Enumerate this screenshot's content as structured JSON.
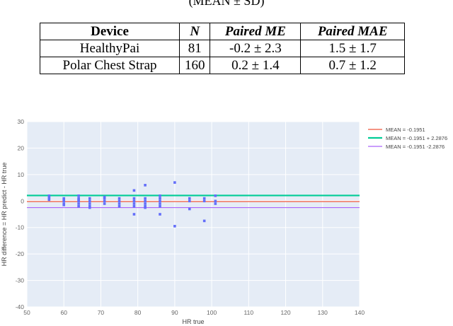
{
  "caption_fragment": "(MEAN ± SD)",
  "table": {
    "headers": [
      "Device",
      "N",
      "Paired ME",
      "Paired MAE"
    ],
    "rows": [
      [
        "HealthyPai",
        "81",
        "-0.2 ± 2.3",
        "1.5 ± 1.7"
      ],
      [
        "Polar Chest Strap",
        "160",
        "0.2 ± 1.4",
        "0.7 ± 1.2"
      ]
    ]
  },
  "chart_data": {
    "type": "scatter",
    "xlabel": "HR true",
    "ylabel": "HR difference = HR predict - HR true",
    "xlim": [
      50,
      140
    ],
    "ylim": [
      -40,
      30
    ],
    "xticks": [
      50,
      60,
      70,
      80,
      90,
      100,
      110,
      120,
      130,
      140
    ],
    "yticks": [
      30,
      20,
      10,
      0,
      -10,
      -20,
      -30,
      -40
    ],
    "grid": true,
    "legend_position": "right",
    "background": "#e5ecf6",
    "marker_color": "#636efa",
    "lines": [
      {
        "name": "MEAN = -0.1951",
        "y": -0.1951,
        "color": "#ef553b"
      },
      {
        "name": "MEAN = -0.1951 + 2.2876",
        "y": 2.0925,
        "color": "#00cc96"
      },
      {
        "name": "MEAN = -0.1951 -2.2876",
        "y": -2.4827,
        "color": "#ab63fa"
      }
    ],
    "points": [
      [
        56,
        2
      ],
      [
        56,
        1
      ],
      [
        56,
        0.5
      ],
      [
        56,
        1.5
      ],
      [
        60,
        1
      ],
      [
        60,
        0
      ],
      [
        60,
        -1
      ],
      [
        60,
        -1.5
      ],
      [
        60,
        0.5
      ],
      [
        64,
        2
      ],
      [
        64,
        1
      ],
      [
        64,
        0
      ],
      [
        64,
        -1
      ],
      [
        64,
        -2
      ],
      [
        64,
        0.5
      ],
      [
        67,
        1
      ],
      [
        67,
        0
      ],
      [
        67,
        -1
      ],
      [
        67,
        -2
      ],
      [
        67,
        -2.5
      ],
      [
        71,
        1
      ],
      [
        71,
        0
      ],
      [
        71,
        -1
      ],
      [
        71,
        1.5
      ],
      [
        75,
        1
      ],
      [
        75,
        0
      ],
      [
        75,
        -1
      ],
      [
        75,
        -2
      ],
      [
        79,
        4
      ],
      [
        79,
        1
      ],
      [
        79,
        0
      ],
      [
        79,
        -1
      ],
      [
        79,
        -2
      ],
      [
        79,
        -5
      ],
      [
        82,
        6
      ],
      [
        82,
        1
      ],
      [
        82,
        0
      ],
      [
        82,
        -1
      ],
      [
        82,
        -2
      ],
      [
        82,
        -2.5
      ],
      [
        86,
        2
      ],
      [
        86,
        1
      ],
      [
        86,
        0
      ],
      [
        86,
        -1
      ],
      [
        86,
        -2
      ],
      [
        86,
        -5
      ],
      [
        90,
        7
      ],
      [
        90,
        -9.5
      ],
      [
        94,
        1
      ],
      [
        94,
        0
      ],
      [
        94,
        -3
      ],
      [
        98,
        1
      ],
      [
        98,
        0
      ],
      [
        98,
        -7.5
      ],
      [
        101,
        2
      ],
      [
        101,
        0
      ],
      [
        101,
        -1
      ]
    ]
  }
}
